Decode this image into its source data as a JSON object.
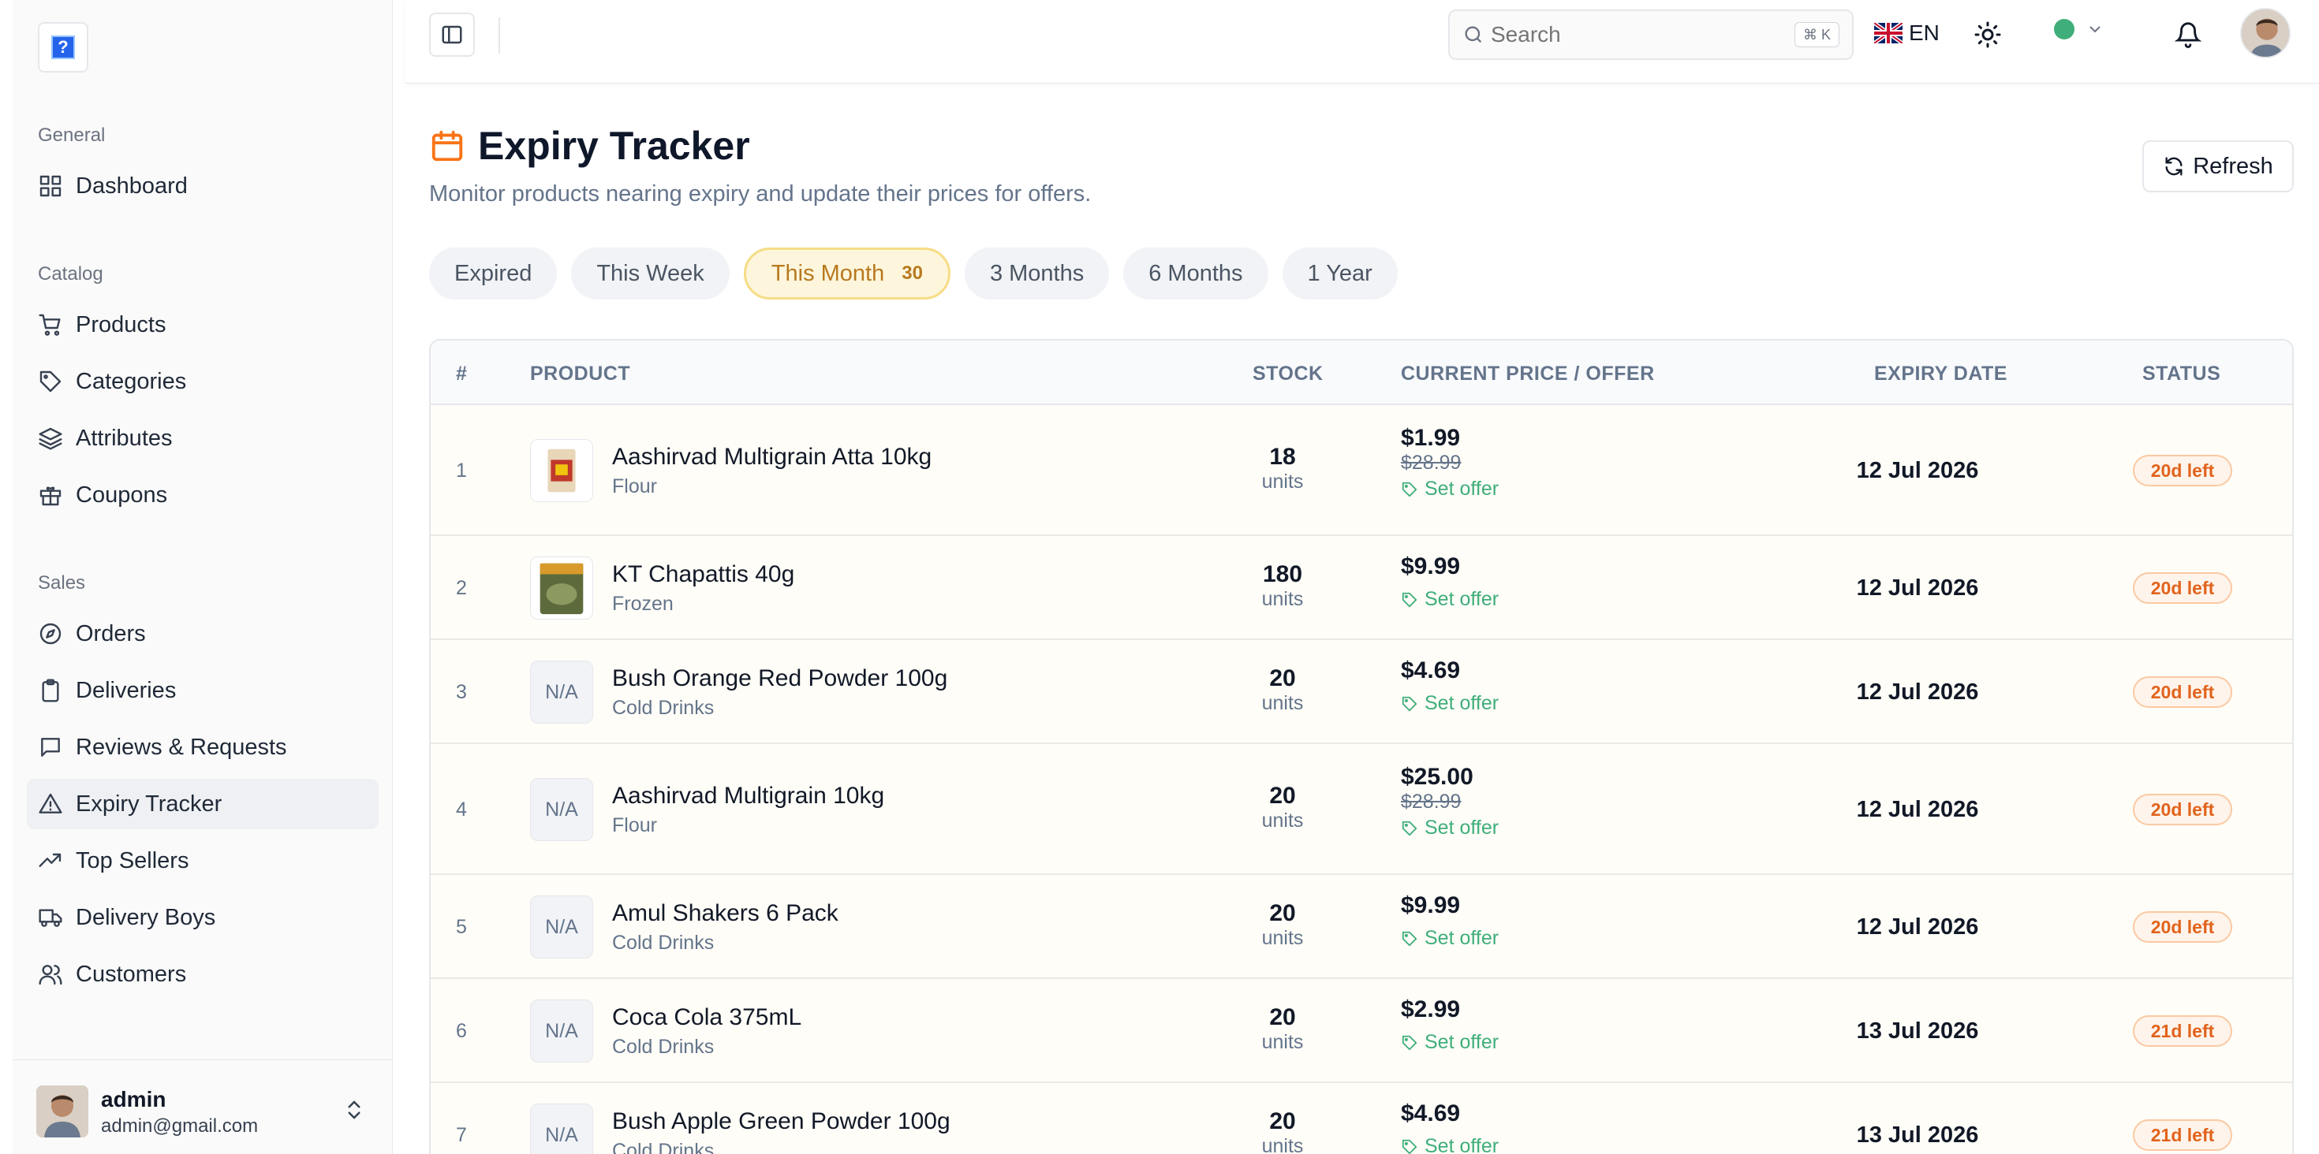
{
  "app": {
    "logo_glyph": "?"
  },
  "sidebar": {
    "groups": [
      {
        "title": "General",
        "items": [
          {
            "label": "Dashboard",
            "icon": "dashboard-icon"
          }
        ]
      },
      {
        "title": "Catalog",
        "items": [
          {
            "label": "Products",
            "icon": "cart-icon"
          },
          {
            "label": "Categories",
            "icon": "tag-icon"
          },
          {
            "label": "Attributes",
            "icon": "layers-icon"
          },
          {
            "label": "Coupons",
            "icon": "gift-icon"
          }
        ]
      },
      {
        "title": "Sales",
        "items": [
          {
            "label": "Orders",
            "icon": "compass-icon"
          },
          {
            "label": "Deliveries",
            "icon": "clipboard-icon"
          },
          {
            "label": "Reviews & Requests",
            "icon": "message-icon"
          },
          {
            "label": "Expiry Tracker",
            "icon": "warning-icon",
            "active": true
          },
          {
            "label": "Top Sellers",
            "icon": "trending-up-icon"
          },
          {
            "label": "Delivery Boys",
            "icon": "truck-icon"
          },
          {
            "label": "Customers",
            "icon": "users-icon"
          }
        ]
      }
    ],
    "user": {
      "name": "admin",
      "email": "admin@gmail.com"
    }
  },
  "header": {
    "search_placeholder": "Search",
    "shortcut": "⌘ K",
    "language": "EN",
    "status_color": "#3fae7a"
  },
  "page": {
    "title": "Expiry Tracker",
    "subtitle": "Monitor products nearing expiry and update their prices for offers.",
    "refresh_label": "Refresh",
    "accent": "#f97316"
  },
  "tabs": [
    {
      "label": "Expired"
    },
    {
      "label": "This Week"
    },
    {
      "label": "This Month",
      "count": "30",
      "active": true
    },
    {
      "label": "3 Months"
    },
    {
      "label": "6 Months"
    },
    {
      "label": "1 Year"
    }
  ],
  "table": {
    "columns": {
      "num": "#",
      "product": "PRODUCT",
      "stock": "STOCK",
      "price": "CURRENT PRICE / OFFER",
      "expiry": "EXPIRY DATE",
      "status": "STATUS"
    },
    "rows": [
      {
        "num": "1",
        "name": "Aashirvad Multigrain Atta 10kg",
        "category": "Flour",
        "thumb": "image",
        "stock": "18",
        "unit": "units",
        "price": "$1.99",
        "old_price": "$28.99",
        "offer": "Set offer",
        "expiry": "12 Jul 2026",
        "status": "20d left"
      },
      {
        "num": "2",
        "name": "KT Chapattis 40g",
        "category": "Frozen",
        "thumb": "image",
        "stock": "180",
        "unit": "units",
        "price": "$9.99",
        "old_price": "",
        "offer": "Set offer",
        "expiry": "12 Jul 2026",
        "status": "20d left"
      },
      {
        "num": "3",
        "name": "Bush Orange Red Powder 100g",
        "category": "Cold Drinks",
        "thumb": "N/A",
        "stock": "20",
        "unit": "units",
        "price": "$4.69",
        "old_price": "",
        "offer": "Set offer",
        "expiry": "12 Jul 2026",
        "status": "20d left"
      },
      {
        "num": "4",
        "name": "Aashirvad Multigrain 10kg",
        "category": "Flour",
        "thumb": "N/A",
        "stock": "20",
        "unit": "units",
        "price": "$25.00",
        "old_price": "$28.99",
        "offer": "Set offer",
        "expiry": "12 Jul 2026",
        "status": "20d left"
      },
      {
        "num": "5",
        "name": "Amul Shakers 6 Pack",
        "category": "Cold Drinks",
        "thumb": "N/A",
        "stock": "20",
        "unit": "units",
        "price": "$9.99",
        "old_price": "",
        "offer": "Set offer",
        "expiry": "12 Jul 2026",
        "status": "20d left"
      },
      {
        "num": "6",
        "name": "Coca Cola 375mL",
        "category": "Cold Drinks",
        "thumb": "N/A",
        "stock": "20",
        "unit": "units",
        "price": "$2.99",
        "old_price": "",
        "offer": "Set offer",
        "expiry": "13 Jul 2026",
        "status": "21d left"
      },
      {
        "num": "7",
        "name": "Bush Apple Green Powder 100g",
        "category": "Cold Drinks",
        "thumb": "N/A",
        "stock": "20",
        "unit": "units",
        "price": "$4.69",
        "old_price": "",
        "offer": "Set offer",
        "expiry": "13 Jul 2026",
        "status": "21d left"
      }
    ]
  }
}
